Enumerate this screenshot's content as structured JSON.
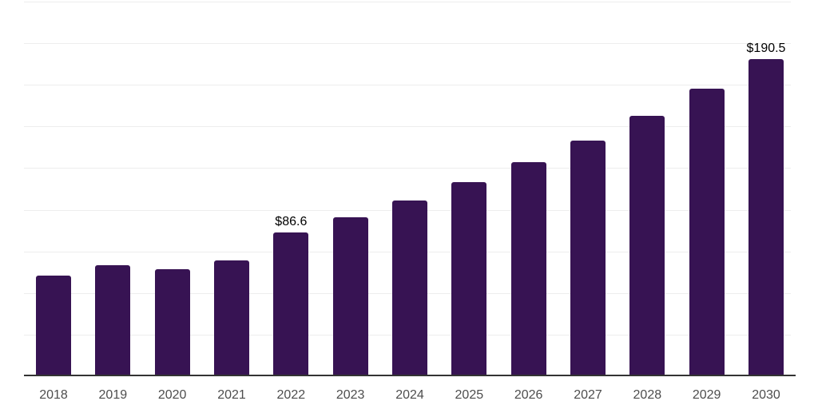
{
  "chart_data": {
    "type": "bar",
    "title": "",
    "xlabel": "",
    "ylabel": "",
    "categories": [
      "2018",
      "2019",
      "2020",
      "2021",
      "2022",
      "2023",
      "2024",
      "2025",
      "2026",
      "2027",
      "2028",
      "2029",
      "2030"
    ],
    "values": [
      60.6,
      66.7,
      64.3,
      69.4,
      86.6,
      95.6,
      105.5,
      116.4,
      128.4,
      141.7,
      156.4,
      172.6,
      190.5
    ],
    "value_labels": [
      {
        "category": "2022",
        "text": "$86.6"
      },
      {
        "category": "2030",
        "text": "$190.5"
      }
    ],
    "ylim": [
      0,
      226
    ],
    "grid_step": 25,
    "grid_on": true,
    "legend": "none",
    "y_tick_labels_visible": false,
    "colors": {
      "bar": "#371353",
      "gridline": "#ededed",
      "axis": "#333333",
      "tick_label": "#4d4d4d",
      "value_label": "#000000",
      "background": "#ffffff"
    }
  }
}
